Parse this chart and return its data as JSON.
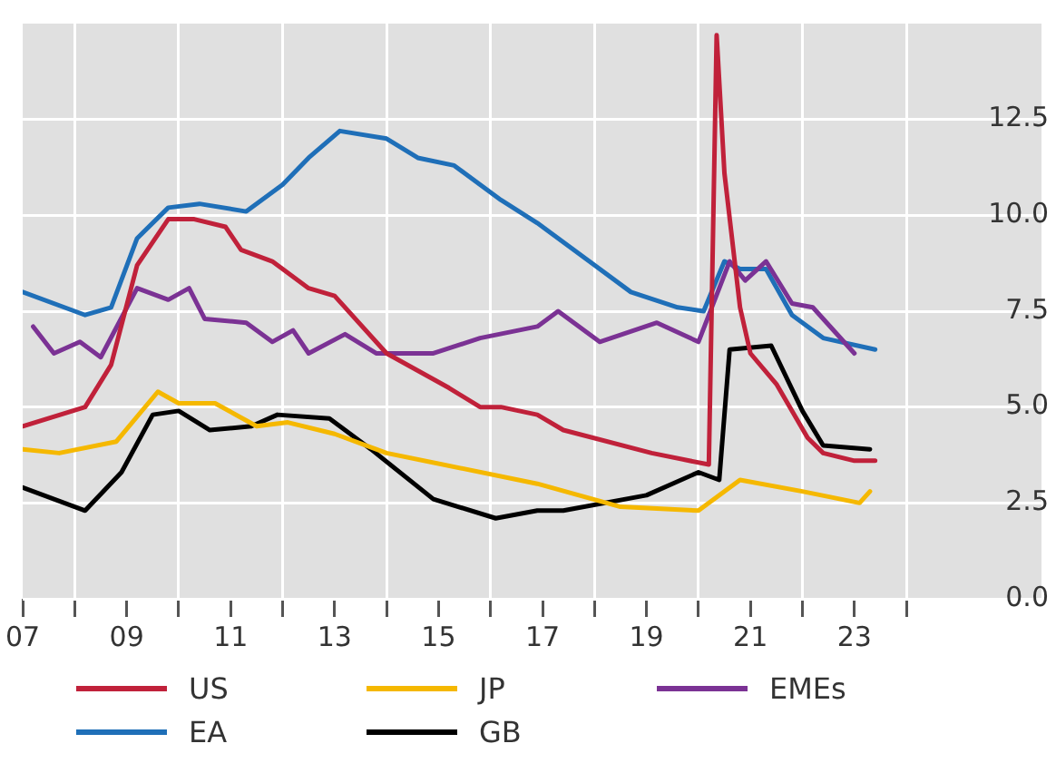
{
  "chart_data": {
    "type": "line",
    "xlim": [
      2007,
      2026.6
    ],
    "ylim": [
      0,
      15
    ],
    "xticks": [
      {
        "value": 2007,
        "label": "07"
      },
      {
        "value": 2008,
        "label": null
      },
      {
        "value": 2009,
        "label": "09"
      },
      {
        "value": 2010,
        "label": null
      },
      {
        "value": 2011,
        "label": "11"
      },
      {
        "value": 2012,
        "label": null
      },
      {
        "value": 2013,
        "label": "13"
      },
      {
        "value": 2014,
        "label": null
      },
      {
        "value": 2015,
        "label": "15"
      },
      {
        "value": 2016,
        "label": null
      },
      {
        "value": 2017,
        "label": "17"
      },
      {
        "value": 2018,
        "label": null
      },
      {
        "value": 2019,
        "label": "19"
      },
      {
        "value": 2020,
        "label": null
      },
      {
        "value": 2021,
        "label": "21"
      },
      {
        "value": 2022,
        "label": null
      },
      {
        "value": 2023,
        "label": "23"
      },
      {
        "value": 2024,
        "label": null
      }
    ],
    "yticks": [
      {
        "value": 0,
        "label": "0.0"
      },
      2.5,
      {
        "value": 5,
        "label": "5.0"
      },
      7.5,
      {
        "value": 10,
        "label": "10.0"
      },
      12.5
    ],
    "grid": true,
    "legend": "bottom",
    "marker": "none",
    "line_style": "solid",
    "series": [
      {
        "name": "US",
        "color": "#c0213a",
        "x": [
          2007.0,
          2008.2,
          2008.7,
          2009.2,
          2009.8,
          2010.3,
          2010.9,
          2011.2,
          2011.8,
          2012.5,
          2013.0,
          2014.0,
          2015.2,
          2015.8,
          2016.2,
          2016.9,
          2017.4,
          2019.1,
          2020.2,
          2020.35,
          2020.5,
          2020.8,
          2021.0,
          2021.5,
          2022.1,
          2022.4,
          2023.0,
          2023.4
        ],
        "values": [
          4.5,
          5.0,
          6.1,
          8.7,
          9.9,
          9.9,
          9.7,
          9.1,
          8.8,
          8.1,
          7.9,
          6.4,
          5.5,
          5.0,
          5.0,
          4.8,
          4.4,
          3.8,
          3.5,
          14.7,
          11.1,
          7.6,
          6.4,
          5.6,
          4.2,
          3.8,
          3.6,
          3.6
        ]
      },
      {
        "name": "JP",
        "color": "#f5b800",
        "x": [
          2007.0,
          2007.7,
          2008.8,
          2009.6,
          2010.0,
          2010.7,
          2011.5,
          2012.1,
          2013.0,
          2014.0,
          2016.9,
          2018.5,
          2020.0,
          2020.8,
          2022.0,
          2023.1,
          2023.3
        ],
        "values": [
          3.9,
          3.8,
          4.1,
          5.4,
          5.1,
          5.1,
          4.5,
          4.6,
          4.3,
          3.8,
          3.0,
          2.4,
          2.3,
          3.1,
          2.8,
          2.5,
          2.8
        ]
      },
      {
        "name": "EMEs",
        "color": "#7b3294",
        "x": [
          2007.2,
          2007.6,
          2008.1,
          2008.5,
          2009.2,
          2009.8,
          2010.2,
          2010.5,
          2011.3,
          2011.8,
          2012.2,
          2012.5,
          2013.2,
          2013.8,
          2014.9,
          2015.8,
          2016.9,
          2017.3,
          2018.1,
          2019.2,
          2020.0,
          2020.6,
          2020.9,
          2021.3,
          2021.8,
          2022.2,
          2023.0
        ],
        "values": [
          7.1,
          6.4,
          6.7,
          6.3,
          8.1,
          7.8,
          8.1,
          7.3,
          7.2,
          6.7,
          7.0,
          6.4,
          6.9,
          6.4,
          6.4,
          6.8,
          7.1,
          7.5,
          6.7,
          7.2,
          6.7,
          8.8,
          8.3,
          8.8,
          7.7,
          7.6,
          6.4
        ]
      },
      {
        "name": "EA",
        "color": "#1f6fb8",
        "x": [
          2007.0,
          2008.2,
          2008.7,
          2009.2,
          2009.8,
          2010.4,
          2011.3,
          2012.0,
          2012.5,
          2013.1,
          2014.0,
          2014.6,
          2015.3,
          2016.2,
          2016.9,
          2017.9,
          2018.7,
          2019.6,
          2020.1,
          2020.5,
          2020.8,
          2021.3,
          2021.8,
          2022.4,
          2023.4
        ],
        "values": [
          8.0,
          7.4,
          7.6,
          9.4,
          10.2,
          10.3,
          10.1,
          10.8,
          11.5,
          12.2,
          12.0,
          11.5,
          11.3,
          10.4,
          9.8,
          8.8,
          8.0,
          7.6,
          7.5,
          8.8,
          8.6,
          8.6,
          7.4,
          6.8,
          6.5
        ]
      },
      {
        "name": "GB",
        "color": "#000000",
        "x": [
          2007.0,
          2008.2,
          2008.9,
          2009.5,
          2010.0,
          2010.6,
          2011.4,
          2011.9,
          2012.9,
          2013.7,
          2014.9,
          2016.1,
          2016.9,
          2017.4,
          2019.0,
          2020.0,
          2020.4,
          2020.6,
          2021.4,
          2022.0,
          2022.4,
          2023.3
        ],
        "values": [
          2.9,
          2.3,
          3.3,
          4.8,
          4.9,
          4.4,
          4.5,
          4.8,
          4.7,
          3.9,
          2.6,
          2.1,
          2.3,
          2.3,
          2.7,
          3.3,
          3.1,
          6.5,
          6.6,
          4.9,
          4.0,
          3.9
        ]
      }
    ]
  }
}
